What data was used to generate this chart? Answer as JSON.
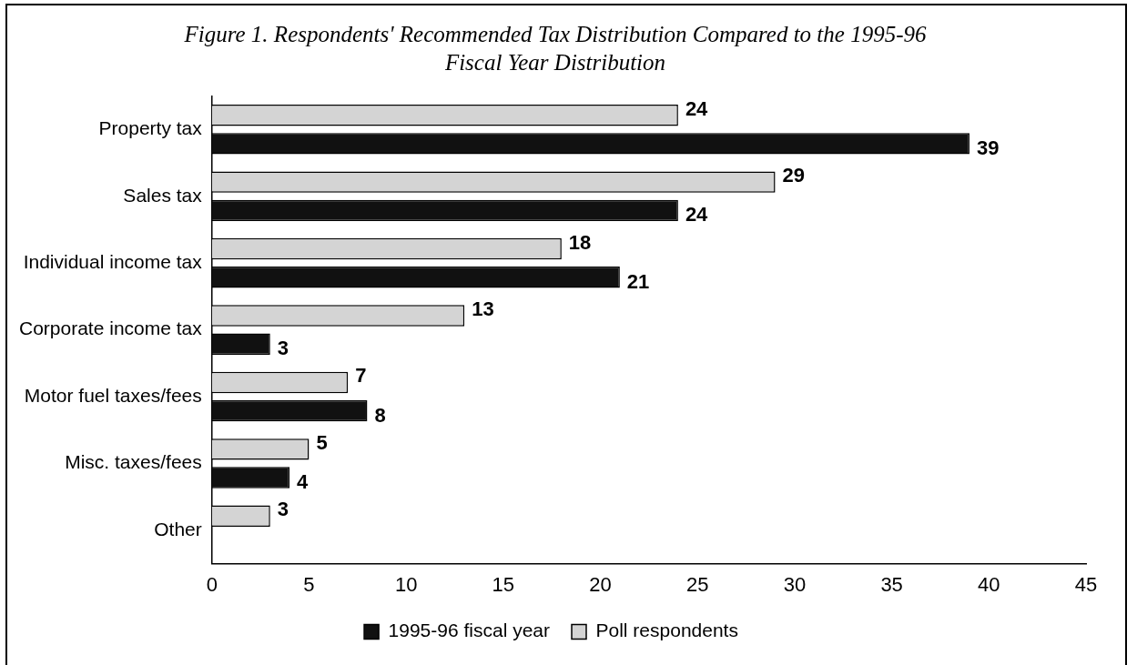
{
  "chart_data": {
    "type": "bar",
    "orientation": "horizontal",
    "title": "Figure 1.  Respondents' Recommended Tax Distribution Compared to the 1995-96 Fiscal Year Distribution",
    "categories": [
      "Property tax",
      "Sales tax",
      "Individual income tax",
      "Corporate income tax",
      "Motor fuel taxes/fees",
      "Misc. taxes/fees",
      "Other"
    ],
    "series": [
      {
        "name": "1995-96 fiscal year",
        "color": "#111111",
        "values": [
          39,
          24,
          21,
          3,
          8,
          4,
          null
        ]
      },
      {
        "name": "Poll respondents",
        "color": "#d4d4d4",
        "values": [
          24,
          29,
          18,
          13,
          7,
          5,
          3
        ]
      }
    ],
    "xlim": [
      0,
      45
    ],
    "xticks": [
      0,
      5,
      10,
      15,
      20,
      25,
      30,
      35,
      40,
      45
    ],
    "grid": false,
    "legend": "bottom",
    "data_labels": true
  }
}
